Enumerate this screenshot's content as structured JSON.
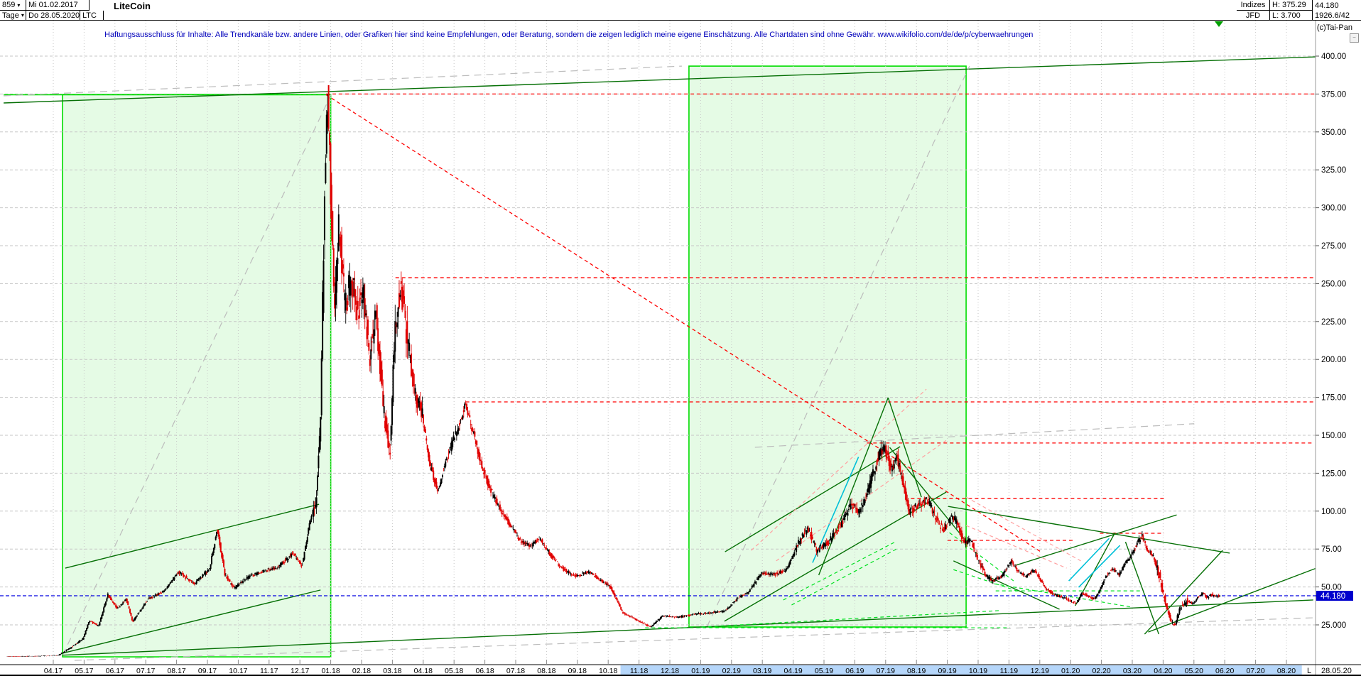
{
  "header": {
    "bars_count": "859",
    "period": "Tage",
    "dropdown_arrow": "▾",
    "date_from": "Mi 01.02.2017",
    "date_to": "Do 28.05.2020",
    "symbol": "LTC",
    "title": "LiteCoin",
    "right": {
      "exchange_label": "Indizes",
      "feed_label": "JFD",
      "high_label": "H: 375.29",
      "low_label": "L: 3.700",
      "last_price": "44.180",
      "volume": "1926.6/42"
    }
  },
  "disclaimer": "Haftungsausschluss für Inhalte: Alle Trendkanäle bzw. andere Linien, oder Grafiken hier sind keine Empfehlungen, oder Beratung, sondern die zeigen lediglich meine eigene Einschätzung. Alle Chartdaten sind ohne Gewähr.  www.wikifolio.com/de/de/p/cyberwaehrungen",
  "copyright": "(c)Tai-Pan",
  "collapse_glyph": "−",
  "axis": {
    "y_labels": [
      [
        "400.00",
        400
      ],
      [
        "375.00",
        375
      ],
      [
        "350.00",
        350
      ],
      [
        "325.00",
        325
      ],
      [
        "300.00",
        300
      ],
      [
        "275.00",
        275
      ],
      [
        "250.00",
        250
      ],
      [
        "225.00",
        225
      ],
      [
        "200.00",
        200
      ],
      [
        "175.00",
        175
      ],
      [
        "150.00",
        150
      ],
      [
        "125.00",
        125
      ],
      [
        "100.00",
        100
      ],
      [
        "75.00",
        75
      ],
      [
        "50.00",
        50
      ],
      [
        "25.000",
        25
      ]
    ],
    "x_labels": [
      "04.17",
      "05.17",
      "06.17",
      "07.17",
      "08.17",
      "09.17",
      "10.17",
      "11.17",
      "12.17",
      "01.18",
      "02.18",
      "03.18",
      "04.18",
      "05.18",
      "06.18",
      "07.18",
      "08.18",
      "09.18",
      "10.18",
      "11.18",
      "12.18",
      "01.19",
      "02.19",
      "03.19",
      "04.19",
      "05.19",
      "06.19",
      "07.19",
      "08.19",
      "09.19",
      "10.19",
      "11.19",
      "12.19",
      "01.20",
      "02.20",
      "03.20",
      "04.20",
      "05.20",
      "06.20",
      "07.20",
      "08.20"
    ],
    "price_tag": "44.180",
    "last_marker": "L",
    "last_date": "28.05.20",
    "highlight_months": [
      20.4,
      42.5
    ]
  },
  "chart_data": {
    "type": "candlestick",
    "instrument": "LiteCoin (LTC)",
    "timeframe": "Tage (daily)",
    "date_range": [
      "01.02.2017",
      "28.05.2020"
    ],
    "range_high": 375.29,
    "range_low": 3.7,
    "last": 44.18,
    "ylim": [
      0,
      410
    ],
    "note": "price_path points are [months_since_2017-02, price_USD] anchors of the daily series",
    "price_path": [
      [
        0.5,
        4.2
      ],
      [
        1.5,
        4.3
      ],
      [
        2.2,
        5
      ],
      [
        2.6,
        10
      ],
      [
        3.0,
        16
      ],
      [
        3.2,
        28
      ],
      [
        3.5,
        24
      ],
      [
        3.8,
        45
      ],
      [
        4.1,
        36
      ],
      [
        4.4,
        42
      ],
      [
        4.6,
        27
      ],
      [
        5.1,
        42
      ],
      [
        5.6,
        47
      ],
      [
        6.1,
        60
      ],
      [
        6.6,
        52
      ],
      [
        7.1,
        62
      ],
      [
        7.35,
        88
      ],
      [
        7.6,
        58
      ],
      [
        7.9,
        49
      ],
      [
        8.3,
        56
      ],
      [
        8.8,
        60
      ],
      [
        9.3,
        63
      ],
      [
        9.8,
        72
      ],
      [
        10.1,
        64
      ],
      [
        10.35,
        92
      ],
      [
        10.55,
        105
      ],
      [
        10.7,
        160
      ],
      [
        10.85,
        330
      ],
      [
        10.93,
        375
      ],
      [
        11.05,
        300
      ],
      [
        11.15,
        230
      ],
      [
        11.3,
        290
      ],
      [
        11.5,
        235
      ],
      [
        11.7,
        255
      ],
      [
        11.9,
        230
      ],
      [
        12.1,
        245
      ],
      [
        12.3,
        200
      ],
      [
        12.5,
        230
      ],
      [
        12.75,
        165
      ],
      [
        12.95,
        138
      ],
      [
        13.1,
        215
      ],
      [
        13.3,
        250
      ],
      [
        13.5,
        215
      ],
      [
        13.75,
        180
      ],
      [
        14.0,
        163
      ],
      [
        14.25,
        130
      ],
      [
        14.5,
        114
      ],
      [
        14.8,
        135
      ],
      [
        15.1,
        152
      ],
      [
        15.4,
        170
      ],
      [
        15.7,
        148
      ],
      [
        16.0,
        125
      ],
      [
        16.3,
        110
      ],
      [
        16.6,
        99
      ],
      [
        16.9,
        89
      ],
      [
        17.2,
        80
      ],
      [
        17.5,
        77
      ],
      [
        17.8,
        82
      ],
      [
        18.2,
        70
      ],
      [
        18.6,
        61
      ],
      [
        19.0,
        57
      ],
      [
        19.4,
        60
      ],
      [
        19.8,
        54
      ],
      [
        20.1,
        50
      ],
      [
        20.5,
        33
      ],
      [
        20.9,
        29
      ],
      [
        21.4,
        23.5
      ],
      [
        21.8,
        31
      ],
      [
        22.3,
        30
      ],
      [
        22.8,
        32
      ],
      [
        23.3,
        33
      ],
      [
        23.8,
        34
      ],
      [
        24.2,
        42
      ],
      [
        24.6,
        47
      ],
      [
        25.0,
        59
      ],
      [
        25.4,
        58
      ],
      [
        25.8,
        61
      ],
      [
        26.2,
        79
      ],
      [
        26.5,
        89
      ],
      [
        26.8,
        74
      ],
      [
        27.2,
        80
      ],
      [
        27.6,
        92
      ],
      [
        27.9,
        104
      ],
      [
        28.2,
        100
      ],
      [
        28.5,
        117
      ],
      [
        28.8,
        136
      ],
      [
        29.0,
        142
      ],
      [
        29.2,
        128
      ],
      [
        29.4,
        136
      ],
      [
        29.6,
        118
      ],
      [
        29.8,
        99
      ],
      [
        30.1,
        104
      ],
      [
        30.4,
        107
      ],
      [
        30.7,
        94
      ],
      [
        30.9,
        87
      ],
      [
        31.2,
        98
      ],
      [
        31.4,
        88
      ],
      [
        31.6,
        79
      ],
      [
        31.8,
        81
      ],
      [
        32.0,
        69
      ],
      [
        32.3,
        57
      ],
      [
        32.5,
        54
      ],
      [
        32.8,
        57
      ],
      [
        33.1,
        67
      ],
      [
        33.3,
        61
      ],
      [
        33.6,
        57
      ],
      [
        33.8,
        61
      ],
      [
        34.0,
        57
      ],
      [
        34.2,
        49
      ],
      [
        34.5,
        45
      ],
      [
        34.8,
        43
      ],
      [
        35.0,
        41
      ],
      [
        35.2,
        39
      ],
      [
        35.4,
        46
      ],
      [
        35.6,
        44
      ],
      [
        35.8,
        42
      ],
      [
        36.0,
        49
      ],
      [
        36.2,
        58
      ],
      [
        36.4,
        62
      ],
      [
        36.6,
        58
      ],
      [
        36.8,
        66
      ],
      [
        37.0,
        71
      ],
      [
        37.2,
        79
      ],
      [
        37.35,
        84
      ],
      [
        37.5,
        75
      ],
      [
        37.7,
        71
      ],
      [
        37.9,
        58
      ],
      [
        38.1,
        40
      ],
      [
        38.3,
        27
      ],
      [
        38.42,
        25
      ],
      [
        38.6,
        37
      ],
      [
        38.8,
        41
      ],
      [
        39.0,
        39
      ],
      [
        39.15,
        43
      ],
      [
        39.3,
        46
      ],
      [
        39.45,
        43
      ],
      [
        39.6,
        45
      ],
      [
        39.75,
        44
      ],
      [
        39.85,
        44.18
      ]
    ],
    "current_price_line": 44.18,
    "boxes": [
      {
        "m": [
          2.3,
          11.0
        ],
        "p": [
          3.9,
          374.7
        ]
      },
      {
        "m": [
          22.62,
          31.61
        ],
        "p": [
          23.6,
          393.4
        ]
      }
    ],
    "lines": [
      {
        "s": "G",
        "pts": [
          [
            0.39,
            374.5
          ],
          [
            11.0,
            374.5
          ]
        ]
      },
      {
        "s": "g",
        "pts": [
          [
            0.39,
            369.1
          ],
          [
            42.97,
            399.5
          ]
        ]
      },
      {
        "s": "y",
        "pts": [
          [
            0.39,
            373.8
          ],
          [
            22.39,
            393.4
          ]
        ]
      },
      {
        "s": "y",
        "pts": [
          [
            2.3,
            4.9
          ],
          [
            11.01,
            374.5
          ]
        ]
      },
      {
        "s": "y",
        "pts": [
          [
            23.2,
            23.6
          ],
          [
            31.72,
            393.4
          ]
        ]
      },
      {
        "s": "y",
        "pts": [
          [
            2.69,
            1.6
          ],
          [
            42.92,
            29.7
          ]
        ]
      },
      {
        "s": "y",
        "pts": [
          [
            24.76,
            142.1
          ],
          [
            39.01,
            157.6
          ]
        ]
      },
      {
        "s": "r",
        "pts": [
          [
            10.85,
            375
          ],
          [
            42.97,
            375
          ]
        ]
      },
      {
        "s": "r",
        "pts": [
          [
            10.85,
            374.5
          ],
          [
            34.07,
            72.7
          ]
        ]
      },
      {
        "s": "r",
        "pts": [
          [
            13.1,
            253.9
          ],
          [
            42.97,
            253.9
          ]
        ]
      },
      {
        "s": "r",
        "pts": [
          [
            15.38,
            172
          ],
          [
            42.97,
            172
          ]
        ]
      },
      {
        "s": "r",
        "pts": [
          [
            28.39,
            144.9
          ],
          [
            42.9,
            144.9
          ]
        ]
      },
      {
        "s": "r",
        "pts": [
          [
            29.82,
            108.3
          ],
          [
            38.03,
            108.3
          ]
        ]
      },
      {
        "s": "r",
        "pts": [
          [
            31.01,
            80.7
          ],
          [
            35.1,
            80.7
          ]
        ]
      },
      {
        "s": "r",
        "pts": [
          [
            35.95,
            85.4
          ],
          [
            38.03,
            85.4
          ]
        ]
      },
      {
        "s": "g",
        "pts": [
          [
            2.3,
            5
          ],
          [
            42.87,
            41.4
          ]
        ]
      },
      {
        "s": "g",
        "pts": [
          [
            2.39,
            62.4
          ],
          [
            10.62,
            104.5
          ]
        ]
      },
      {
        "s": "g",
        "pts": [
          [
            2.3,
            6.3
          ],
          [
            10.67,
            48
          ]
        ]
      },
      {
        "s": "g",
        "pts": [
          [
            23.79,
            73.2
          ],
          [
            29.47,
            142.5
          ]
        ]
      },
      {
        "s": "g",
        "pts": [
          [
            23.77,
            27.4
          ],
          [
            30.97,
            112.6
          ]
        ]
      },
      {
        "s": "g",
        "pts": [
          [
            26.83,
            57.8
          ],
          [
            29.08,
            174.8
          ]
        ]
      },
      {
        "s": "g",
        "pts": [
          [
            29.08,
            174.8
          ],
          [
            30.16,
            109.2
          ]
        ]
      },
      {
        "s": "g",
        "pts": [
          [
            29.13,
            142
          ],
          [
            31.61,
            80.2
          ]
        ]
      },
      {
        "s": "g",
        "pts": [
          [
            31.03,
            103.1
          ],
          [
            40.16,
            72.3
          ]
        ]
      },
      {
        "s": "g",
        "pts": [
          [
            33.22,
            64.3
          ],
          [
            38.44,
            97.5
          ]
        ]
      },
      {
        "s": "g",
        "pts": [
          [
            35.15,
            37.6
          ],
          [
            36.44,
            85.8
          ]
        ]
      },
      {
        "s": "g",
        "pts": [
          [
            31.2,
            67.2
          ],
          [
            34.64,
            35.3
          ]
        ]
      },
      {
        "s": "g",
        "pts": [
          [
            36.78,
            79.7
          ],
          [
            37.86,
            18.9
          ]
        ]
      },
      {
        "s": "g",
        "pts": [
          [
            37.4,
            18.9
          ],
          [
            39.93,
            74.1
          ]
        ]
      },
      {
        "s": "g",
        "pts": [
          [
            37.52,
            20.3
          ],
          [
            42.97,
            62.4
          ]
        ]
      },
      {
        "s": "c",
        "pts": [
          [
            34.94,
            54
          ],
          [
            36.25,
            82
          ]
        ]
      },
      {
        "s": "c",
        "pts": [
          [
            35.26,
            49.8
          ],
          [
            36.6,
            77.4
          ]
        ]
      },
      {
        "s": "c",
        "pts": [
          [
            26.63,
            66
          ],
          [
            28.12,
            135.7
          ]
        ]
      },
      {
        "s": "p",
        "pts": [
          [
            24.64,
            74.1
          ],
          [
            30.32,
            180.4
          ]
        ]
      },
      {
        "s": "p",
        "pts": [
          [
            25.45,
            67.2
          ],
          [
            30.97,
            146.7
          ]
        ]
      },
      {
        "s": "p",
        "pts": [
          [
            31.61,
            109.2
          ],
          [
            35.33,
            67.2
          ]
        ]
      },
      {
        "s": "p",
        "pts": [
          [
            31.61,
            90.5
          ],
          [
            34.87,
            62.4
          ]
        ]
      },
      {
        "s": "l",
        "pts": [
          [
            25.68,
            41.4
          ],
          [
            29.31,
            79.7
          ]
        ]
      },
      {
        "s": "l",
        "pts": [
          [
            25.95,
            38.1
          ],
          [
            29.4,
            75.5
          ]
        ]
      },
      {
        "s": "l",
        "pts": [
          [
            31.07,
            85.8
          ],
          [
            33.15,
            54
          ]
        ]
      },
      {
        "s": "l",
        "pts": [
          [
            31.2,
            61.4
          ],
          [
            33.26,
            47.4
          ]
        ]
      },
      {
        "s": "l",
        "pts": [
          [
            21.2,
            23.1
          ],
          [
            33.03,
            23.1
          ]
        ]
      },
      {
        "s": "l",
        "pts": [
          [
            23.03,
            23.6
          ],
          [
            32.68,
            34.4
          ]
        ]
      },
      {
        "s": "l",
        "pts": [
          [
            32.57,
            47.4
          ],
          [
            37.33,
            47.4
          ]
        ]
      },
      {
        "s": "l",
        "pts": [
          [
            32.52,
            52.1
          ],
          [
            36.99,
            36.7
          ]
        ]
      }
    ],
    "colors": {
      "up": "#000000",
      "down": "#e00000",
      "box_fill": "rgba(0,220,0,0.10)",
      "box_border": "#00dd00",
      "grid": "#c6c6c6",
      "red": "#ff0000",
      "green": "#067006",
      "lime": "#00e020",
      "cyan": "#00c0d8",
      "pink": "#ffa0a0",
      "gray": "#bcbcbc",
      "blue": "#0000e0",
      "tag_bg": "#0000cd",
      "highlight": "#b5d6fa"
    },
    "legend_position": "none",
    "grid": true
  }
}
